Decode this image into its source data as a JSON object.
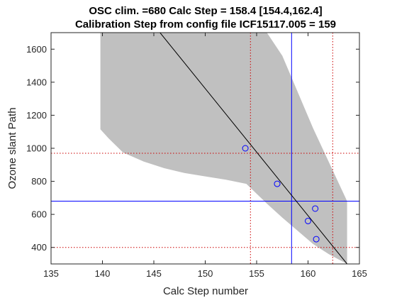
{
  "chart_data": {
    "type": "scatter",
    "title_line1": "OSC clim. =680   Calc Step = 158.4 [154.4,162.4]",
    "title_line2": "Calibration Step from config file ICF15117.005 = 159",
    "xlabel": "Calc Step number",
    "ylabel": "Ozone slant Path",
    "xlim": [
      135,
      165
    ],
    "ylim": [
      300,
      1700
    ],
    "xticks": [
      135,
      140,
      145,
      150,
      155,
      160,
      165
    ],
    "yticks": [
      400,
      600,
      800,
      1000,
      1200,
      1400,
      1600
    ],
    "grid": false,
    "points": [
      {
        "x": 153.9,
        "y": 1000
      },
      {
        "x": 157.0,
        "y": 785
      },
      {
        "x": 160.7,
        "y": 635
      },
      {
        "x": 160.0,
        "y": 560
      },
      {
        "x": 160.8,
        "y": 450
      }
    ],
    "fit_line": {
      "x": [
        145.6,
        163.8
      ],
      "y": [
        1700,
        300
      ]
    },
    "confidence_band": {
      "x": [
        139.8,
        140.6,
        142.0,
        144.0,
        146.0,
        148.0,
        150.0,
        152.0,
        154.0,
        156.0,
        157.5,
        159.0,
        160.5,
        162.0,
        163.8
      ],
      "upper": [
        1700,
        1700,
        1700,
        1700,
        1700,
        1700,
        1700,
        1700,
        1700,
        1700,
        1560,
        1340,
        1120,
        920,
        680
      ],
      "lower": [
        1115,
        1060,
        975,
        920,
        880,
        850,
        830,
        810,
        785,
        665,
        580,
        500,
        420,
        360,
        300
      ]
    },
    "reference_lines": {
      "vertical_solid": 158.4,
      "horizontal_solid": 680,
      "vertical_dotted": [
        154.4,
        162.4
      ],
      "horizontal_dotted": [
        970,
        400
      ]
    },
    "colors": {
      "band": "#c0c0c0",
      "fit_line": "#000000",
      "markers": "#0000ff",
      "reference_solid": "#0000ff",
      "reference_dotted": "#cc0000",
      "axes": "#262626"
    }
  }
}
